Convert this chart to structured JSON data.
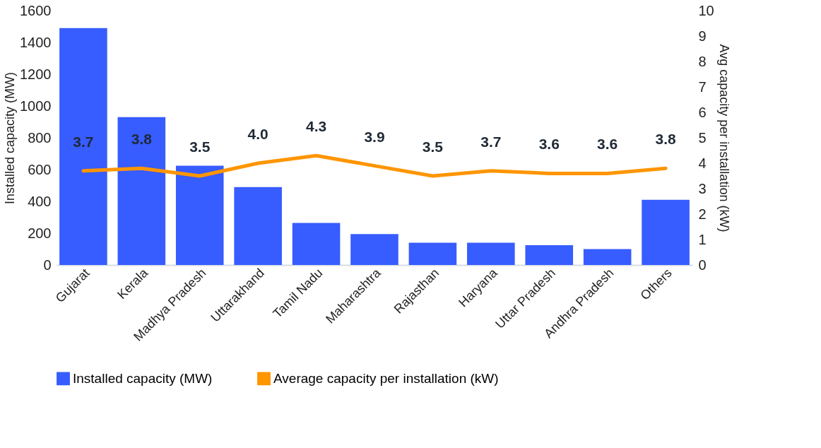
{
  "chart_data": {
    "type": "bar",
    "categories": [
      "Gujarat",
      "Kerala",
      "Madhya Pradesh",
      "Uttarakhand",
      "Tamil Nadu",
      "Maharashtra",
      "Rajasthan",
      "Haryana",
      "Uttar Pradesh",
      "Andhra Pradesh",
      "Others"
    ],
    "ylabel": "Installed capacity (MW)",
    "y2label": "Avg capacity per installation (kW)",
    "ylim": [
      0,
      1600
    ],
    "yticks": [
      0,
      200,
      400,
      600,
      800,
      1000,
      1200,
      1400,
      1600
    ],
    "y2lim": [
      0,
      10
    ],
    "y2ticks": [
      0,
      1,
      2,
      3,
      4,
      5,
      6,
      7,
      8,
      9,
      10
    ],
    "series": [
      {
        "name": "Installed capacity (MW)",
        "color": "#375cff",
        "values": [
          1490,
          930,
          625,
          490,
          265,
          195,
          140,
          140,
          125,
          100,
          410
        ]
      },
      {
        "name": "Average capacity per installation (kW)",
        "type": "line",
        "axis": "y2",
        "color": "#ff9500",
        "values": [
          3.7,
          3.8,
          3.5,
          4.0,
          4.3,
          3.9,
          3.5,
          3.7,
          3.6,
          3.6,
          3.8
        ],
        "value_labels": [
          "3.7",
          "3.8",
          "3.5",
          "4.0",
          "4.3",
          "3.9",
          "3.5",
          "3.7",
          "3.6",
          "3.6",
          "3.8"
        ]
      }
    ],
    "legend": "bottom",
    "grid": false
  }
}
